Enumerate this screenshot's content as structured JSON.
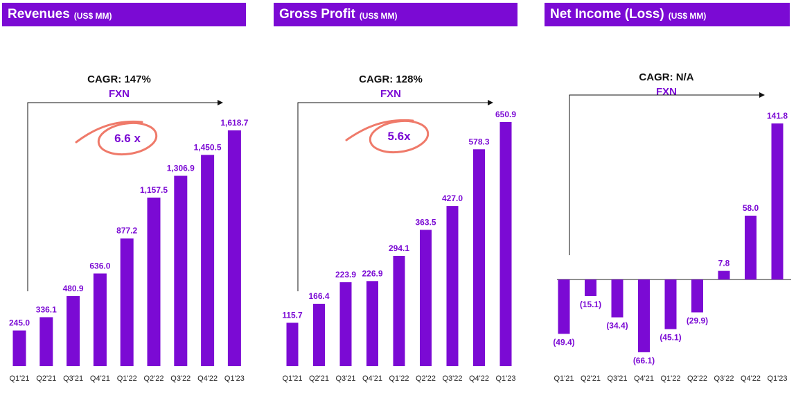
{
  "colors": {
    "accent": "#7b0ad4",
    "header_bg": "#7b0ad4",
    "header_text": "#ffffff",
    "annotation": "#ef7a6a",
    "text": "#111111"
  },
  "panels": [
    {
      "title": "Revenues",
      "unit": "(US$ MM)",
      "cagr": "CAGR: 147%",
      "cagr_sub": "FXN",
      "multiplier": "6.6 x"
    },
    {
      "title": "Gross Profit",
      "unit": "(US$ MM)",
      "cagr": "CAGR: 128%",
      "cagr_sub": "FXN",
      "multiplier": "5.6x"
    },
    {
      "title": "Net Income (Loss)",
      "unit": "(US$ MM)",
      "cagr": "CAGR: N/A",
      "cagr_sub": "FXN",
      "multiplier": ""
    }
  ],
  "chart_data": [
    {
      "type": "bar",
      "title": "Revenues (US$ MM)",
      "categories": [
        "Q1'21",
        "Q2'21",
        "Q3'21",
        "Q4'21",
        "Q1'22",
        "Q2'22",
        "Q3'22",
        "Q4'22",
        "Q1'23"
      ],
      "values": [
        245.0,
        336.1,
        480.9,
        636.0,
        877.2,
        1157.5,
        1306.9,
        1450.5,
        1618.7
      ],
      "labels": [
        "245.0",
        "336.1",
        "480.9",
        "636.0",
        "877.2",
        "1,157.5",
        "1,306.9",
        "1,450.5",
        "1,618.7"
      ],
      "ylim": [
        0,
        1618.7
      ]
    },
    {
      "type": "bar",
      "title": "Gross Profit (US$ MM)",
      "categories": [
        "Q1'21",
        "Q2'21",
        "Q3'21",
        "Q4'21",
        "Q1'22",
        "Q2'22",
        "Q3'22",
        "Q4'22",
        "Q1'23"
      ],
      "values": [
        115.7,
        166.4,
        223.9,
        226.9,
        294.1,
        363.5,
        427.0,
        578.3,
        650.9
      ],
      "labels": [
        "115.7",
        "166.4",
        "223.9",
        "226.9",
        "294.1",
        "363.5",
        "427.0",
        "578.3",
        "650.9"
      ],
      "ylim": [
        0,
        650.9
      ]
    },
    {
      "type": "bar",
      "title": "Net Income (Loss) (US$ MM)",
      "categories": [
        "Q1'21",
        "Q2'21",
        "Q3'21",
        "Q4'21",
        "Q1'22",
        "Q2'22",
        "Q3'22",
        "Q4'22",
        "Q1'23"
      ],
      "values": [
        -49.4,
        -15.1,
        -34.4,
        -66.1,
        -45.1,
        -29.9,
        7.8,
        58.0,
        141.8
      ],
      "labels": [
        "(49.4)",
        "(15.1)",
        "(34.4)",
        "(66.1)",
        "(45.1)",
        "(29.9)",
        "7.8",
        "58.0",
        "141.8"
      ],
      "ylim": [
        -66.1,
        141.8
      ]
    }
  ]
}
